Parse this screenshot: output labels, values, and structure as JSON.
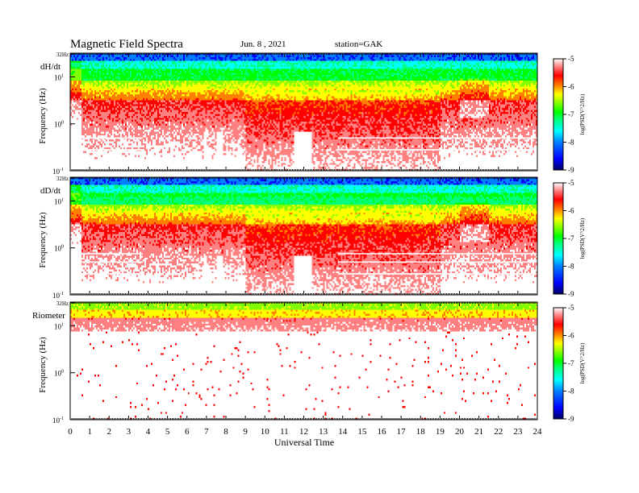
{
  "header": {
    "title": "Magnetic Field Spectra",
    "date": "Jun. 8 , 2021",
    "station": "station=GAK"
  },
  "chart_data": [
    {
      "type": "heatmap",
      "panel_label": "dH/dt",
      "ylabel": "Frequency (Hz)",
      "yscale": "log",
      "ylim": [
        0.1,
        32
      ],
      "y_ticks": [
        {
          "label": "32Hz",
          "value": 32
        },
        {
          "label": "10",
          "sup": "1",
          "value": 10
        },
        {
          "label": "10",
          "sup": "0",
          "value": 1
        },
        {
          "label": "10",
          "sup": "-1",
          "value": 0.1
        }
      ],
      "colorbar": {
        "label": "log(PSD(V^2/Hz)",
        "range": [
          -9,
          -5
        ],
        "ticks": [
          "-5",
          "-6",
          "-7",
          "-8",
          "-9"
        ]
      },
      "description_levels": {
        "quiet_background": -6.5,
        "noise_floor_top": -8.8
      }
    },
    {
      "type": "heatmap",
      "panel_label": "dD/dt",
      "ylabel": "Frequency (Hz)",
      "yscale": "log",
      "ylim": [
        0.1,
        32
      ],
      "y_ticks": [
        {
          "label": "32Hz",
          "value": 32
        },
        {
          "label": "10",
          "sup": "1",
          "value": 10
        },
        {
          "label": "10",
          "sup": "0",
          "value": 1
        },
        {
          "label": "10",
          "sup": "-1",
          "value": 0.1
        }
      ],
      "colorbar": {
        "label": "log(PSD(V^2/Hz)",
        "range": [
          -9,
          -5
        ],
        "ticks": [
          "-5",
          "-6",
          "-7",
          "-8",
          "-9"
        ]
      }
    },
    {
      "type": "heatmap",
      "panel_label": "Riometer",
      "ylabel": "Frequency (Hz)",
      "yscale": "log",
      "ylim": [
        0.1,
        32
      ],
      "y_ticks": [
        {
          "label": "32Hz",
          "value": 32
        },
        {
          "label": "10",
          "sup": "1",
          "value": 10
        },
        {
          "label": "10",
          "sup": "0",
          "value": 1
        },
        {
          "label": "10",
          "sup": "-1",
          "value": 0.1
        }
      ],
      "colorbar": {
        "label": "log(PSD(V^2/Hz)",
        "range": [
          -9,
          -5
        ],
        "ticks": [
          "-5",
          "-6",
          "-7",
          "-8",
          "-9"
        ]
      }
    }
  ],
  "x_axis": {
    "label": "Universal Time",
    "ticks": [
      "0",
      "1",
      "2",
      "3",
      "4",
      "5",
      "6",
      "7",
      "8",
      "9",
      "10",
      "11",
      "12",
      "13",
      "14",
      "15",
      "16",
      "17",
      "18",
      "19",
      "20",
      "21",
      "22",
      "23",
      "24"
    ],
    "range": [
      0,
      24
    ]
  },
  "colors": {
    "scale": [
      "#000066",
      "#0000ff",
      "#0080ff",
      "#00ffff",
      "#00ff80",
      "#00ff00",
      "#80ff00",
      "#ffff00",
      "#ff8000",
      "#ff0000",
      "#ff8080",
      "#ffffff"
    ]
  }
}
